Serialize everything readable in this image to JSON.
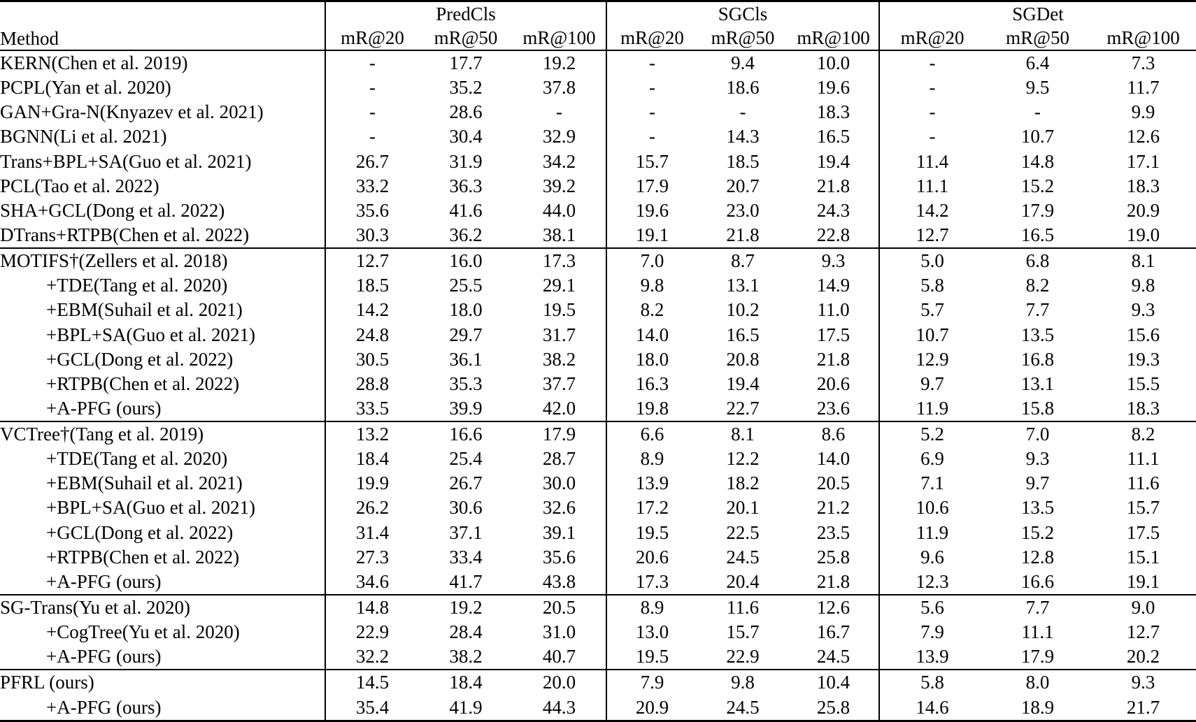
{
  "table": {
    "corner_label": "Method",
    "task_groups": [
      "PredCls",
      "SGCls",
      "SGDet"
    ],
    "metric_labels": [
      "mR@20",
      "mR@50",
      "mR@100",
      "mR@20",
      "mR@50",
      "mR@100",
      "mR@20",
      "mR@50",
      "mR@100"
    ],
    "sections": [
      {
        "rows": [
          {
            "method": "KERN(Chen et al. 2019)",
            "indent": false,
            "bold_method": false,
            "values": [
              "-",
              "17.7",
              "19.2",
              "-",
              "9.4",
              "10.0",
              "-",
              "6.4",
              "7.3"
            ],
            "bold": []
          },
          {
            "method": "PCPL(Yan et al. 2020)",
            "indent": false,
            "bold_method": false,
            "values": [
              "-",
              "35.2",
              "37.8",
              "-",
              "18.6",
              "19.6",
              "-",
              "9.5",
              "11.7"
            ],
            "bold": []
          },
          {
            "method": "GAN+Gra-N(Knyazev et al. 2021)",
            "indent": false,
            "bold_method": false,
            "values": [
              "-",
              "28.6",
              "-",
              "-",
              "-",
              "18.3",
              "-",
              "-",
              "9.9"
            ],
            "bold": []
          },
          {
            "method": "BGNN(Li et al. 2021)",
            "indent": false,
            "bold_method": false,
            "values": [
              "-",
              "30.4",
              "32.9",
              "-",
              "14.3",
              "16.5",
              "-",
              "10.7",
              "12.6"
            ],
            "bold": []
          },
          {
            "method": "Trans+BPL+SA(Guo et al. 2021)",
            "indent": false,
            "bold_method": false,
            "values": [
              "26.7",
              "31.9",
              "34.2",
              "15.7",
              "18.5",
              "19.4",
              "11.4",
              "14.8",
              "17.1"
            ],
            "bold": []
          },
          {
            "method": "PCL(Tao et al. 2022)",
            "indent": false,
            "bold_method": false,
            "values": [
              "33.2",
              "36.3",
              "39.2",
              "17.9",
              "20.7",
              "21.8",
              "11.1",
              "15.2",
              "18.3"
            ],
            "bold": []
          },
          {
            "method": "SHA+GCL(Dong et al. 2022)",
            "indent": false,
            "bold_method": false,
            "values": [
              "35.6",
              "41.6",
              "44.0",
              "19.6",
              "23.0",
              "24.3",
              "14.2",
              "17.9",
              "20.9"
            ],
            "bold": []
          },
          {
            "method": "DTrans+RTPB(Chen et al. 2022)",
            "indent": false,
            "bold_method": false,
            "values": [
              "30.3",
              "36.2",
              "38.1",
              "19.1",
              "21.8",
              "22.8",
              "12.7",
              "16.5",
              "19.0"
            ],
            "bold": []
          }
        ]
      },
      {
        "rows": [
          {
            "method": "MOTIFS†(Zellers et al. 2018)",
            "indent": false,
            "bold_method": false,
            "values": [
              "12.7",
              "16.0",
              "17.3",
              "7.0",
              "8.7",
              "9.3",
              "5.0",
              "6.8",
              "8.1"
            ],
            "bold": []
          },
          {
            "method": "+TDE(Tang et al. 2020)",
            "indent": true,
            "bold_method": false,
            "values": [
              "18.5",
              "25.5",
              "29.1",
              "9.8",
              "13.1",
              "14.9",
              "5.8",
              "8.2",
              "9.8"
            ],
            "bold": []
          },
          {
            "method": "+EBM(Suhail et al. 2021)",
            "indent": true,
            "bold_method": false,
            "values": [
              "14.2",
              "18.0",
              "19.5",
              "8.2",
              "10.2",
              "11.0",
              "5.7",
              "7.7",
              "9.3"
            ],
            "bold": []
          },
          {
            "method": "+BPL+SA(Guo et al. 2021)",
            "indent": true,
            "bold_method": false,
            "values": [
              "24.8",
              "29.7",
              "31.7",
              "14.0",
              "16.5",
              "17.5",
              "10.7",
              "13.5",
              "15.6"
            ],
            "bold": []
          },
          {
            "method": "+GCL(Dong et al. 2022)",
            "indent": true,
            "bold_method": false,
            "values": [
              "30.5",
              "36.1",
              "38.2",
              "18.0",
              "20.8",
              "21.8",
              "12.9",
              "16.8",
              "19.3"
            ],
            "bold": [
              6,
              7,
              8
            ]
          },
          {
            "method": "+RTPB(Chen et al. 2022)",
            "indent": true,
            "bold_method": false,
            "values": [
              "28.8",
              "35.3",
              "37.7",
              "16.3",
              "19.4",
              "20.6",
              "9.7",
              "13.1",
              "15.5"
            ],
            "bold": []
          },
          {
            "method": "+A-PFG (ours)",
            "indent": true,
            "bold_method": true,
            "values": [
              "33.5",
              "39.9",
              "42.0",
              "19.8",
              "22.7",
              "23.6",
              "11.9",
              "15.8",
              "18.3"
            ],
            "bold": [
              0,
              1,
              2,
              3,
              4,
              5
            ]
          }
        ]
      },
      {
        "rows": [
          {
            "method": "VCTree†(Tang et al. 2019)",
            "indent": false,
            "bold_method": false,
            "values": [
              "13.2",
              "16.6",
              "17.9",
              "6.6",
              "8.1",
              "8.6",
              "5.2",
              "7.0",
              "8.2"
            ],
            "bold": []
          },
          {
            "method": "+TDE(Tang et al. 2020)",
            "indent": true,
            "bold_method": false,
            "values": [
              "18.4",
              "25.4",
              "28.7",
              "8.9",
              "12.2",
              "14.0",
              "6.9",
              "9.3",
              "11.1"
            ],
            "bold": []
          },
          {
            "method": "+EBM(Suhail et al. 2021)",
            "indent": true,
            "bold_method": false,
            "values": [
              "19.9",
              "26.7",
              "30.0",
              "13.9",
              "18.2",
              "20.5",
              "7.1",
              "9.7",
              "11.6"
            ],
            "bold": []
          },
          {
            "method": "+BPL+SA(Guo et al. 2021)",
            "indent": true,
            "bold_method": false,
            "values": [
              "26.2",
              "30.6",
              "32.6",
              "17.2",
              "20.1",
              "21.2",
              "10.6",
              "13.5",
              "15.7"
            ],
            "bold": []
          },
          {
            "method": "+GCL(Dong et al. 2022)",
            "indent": true,
            "bold_method": false,
            "values": [
              "31.4",
              "37.1",
              "39.1",
              "19.5",
              "22.5",
              "23.5",
              "11.9",
              "15.2",
              "17.5"
            ],
            "bold": []
          },
          {
            "method": "+RTPB(Chen et al. 2022)",
            "indent": true,
            "bold_method": false,
            "values": [
              "27.3",
              "33.4",
              "35.6",
              "20.6",
              "24.5",
              "25.8",
              "9.6",
              "12.8",
              "15.1"
            ],
            "bold": [
              3,
              4,
              5
            ]
          },
          {
            "method": "+A-PFG (ours)",
            "indent": true,
            "bold_method": true,
            "values": [
              "34.6",
              "41.7",
              "43.8",
              "17.3",
              "20.4",
              "21.8",
              "12.3",
              "16.6",
              "19.1"
            ],
            "bold": [
              0,
              1,
              2,
              6,
              7,
              8
            ]
          }
        ]
      },
      {
        "rows": [
          {
            "method": "SG-Trans(Yu et al. 2020)",
            "indent": false,
            "bold_method": false,
            "values": [
              "14.8",
              "19.2",
              "20.5",
              "8.9",
              "11.6",
              "12.6",
              "5.6",
              "7.7",
              "9.0"
            ],
            "bold": []
          },
          {
            "method": "+CogTree(Yu et al. 2020)",
            "indent": true,
            "bold_method": false,
            "values": [
              "22.9",
              "28.4",
              "31.0",
              "13.0",
              "15.7",
              "16.7",
              "7.9",
              "11.1",
              "12.7"
            ],
            "bold": []
          },
          {
            "method": "+A-PFG (ours)",
            "indent": true,
            "bold_method": true,
            "values": [
              "32.2",
              "38.2",
              "40.7",
              "19.5",
              "22.9",
              "24.5",
              "13.9",
              "17.9",
              "20.2"
            ],
            "bold": [
              0,
              1,
              2,
              3,
              4,
              5,
              6,
              7,
              8
            ]
          }
        ]
      },
      {
        "rows": [
          {
            "method": "PFRL (ours)",
            "indent": false,
            "bold_method": true,
            "values": [
              "14.5",
              "18.4",
              "20.0",
              "7.9",
              "9.8",
              "10.4",
              "5.8",
              "8.0",
              "9.3"
            ],
            "bold": []
          },
          {
            "method": "+A-PFG (ours)",
            "indent": true,
            "bold_method": true,
            "values": [
              "35.4",
              "41.9",
              "44.3",
              "20.9",
              "24.5",
              "25.8",
              "14.6",
              "18.9",
              "21.7"
            ],
            "bold": [
              0,
              1,
              2,
              3,
              4,
              5,
              6,
              7,
              8
            ]
          }
        ]
      }
    ]
  }
}
